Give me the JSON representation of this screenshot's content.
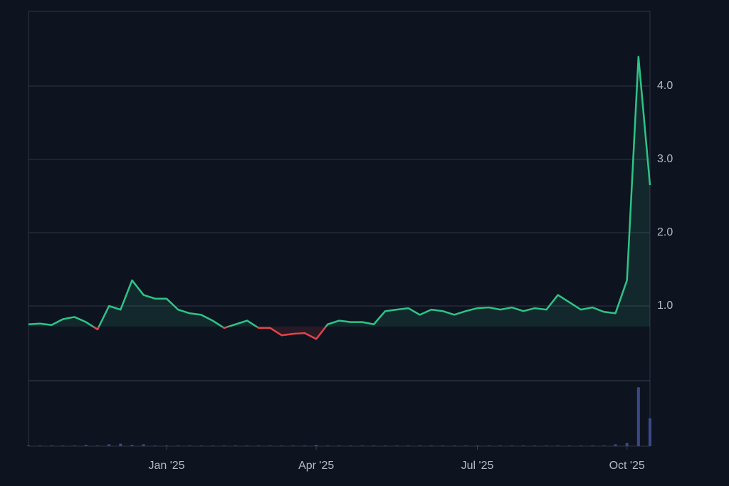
{
  "chart_data": {
    "type": "baseline-line",
    "categories": [
      null,
      null,
      null,
      null,
      null,
      null,
      null,
      null,
      null,
      null,
      null,
      null,
      "Jan '25",
      null,
      null,
      null,
      null,
      null,
      null,
      null,
      null,
      null,
      null,
      null,
      null,
      "Apr '25",
      null,
      null,
      null,
      null,
      null,
      null,
      null,
      null,
      null,
      null,
      null,
      null,
      null,
      "Jul '25",
      null,
      null,
      null,
      null,
      null,
      null,
      null,
      null,
      null,
      null,
      null,
      null,
      "Oct '25",
      null,
      null
    ],
    "values": [
      0.75,
      0.76,
      0.74,
      0.82,
      0.85,
      0.78,
      0.68,
      1.0,
      0.95,
      1.35,
      1.15,
      1.1,
      1.1,
      0.95,
      0.9,
      0.88,
      0.8,
      0.7,
      0.75,
      0.8,
      0.7,
      0.7,
      0.6,
      0.62,
      0.63,
      0.55,
      0.75,
      0.8,
      0.78,
      0.78,
      0.75,
      0.93,
      0.95,
      0.97,
      0.88,
      0.95,
      0.93,
      0.88,
      0.93,
      0.97,
      0.98,
      0.95,
      0.98,
      0.93,
      0.97,
      0.95,
      1.15,
      1.05,
      0.95,
      0.98,
      0.92,
      0.9,
      1.35,
      4.4,
      2.65
    ],
    "volume": [
      1,
      1,
      1,
      1,
      1,
      2,
      1,
      3,
      4,
      2,
      3,
      1,
      1,
      1,
      1,
      1,
      1,
      1,
      1,
      1,
      1,
      1,
      1,
      1,
      1,
      2,
      1,
      1,
      1,
      1,
      1,
      1,
      1,
      1,
      1,
      1,
      1,
      1,
      1,
      1,
      1,
      1,
      1,
      1,
      1,
      1,
      1,
      1,
      1,
      1,
      1,
      3,
      5,
      95,
      45
    ],
    "volume_ylim": [
      0,
      100
    ],
    "baseline_value": 0.72,
    "up_color": "#2ec486",
    "down_color": "#e5434a",
    "volume_color": "#3b4a86",
    "ylim": [
      0,
      5
    ],
    "yticks": [
      {
        "value": 1,
        "label": "1.0"
      },
      {
        "value": 2,
        "label": "2.0"
      },
      {
        "value": 3,
        "label": "3.0"
      },
      {
        "value": 4,
        "label": "4.0"
      }
    ],
    "grid": true
  }
}
